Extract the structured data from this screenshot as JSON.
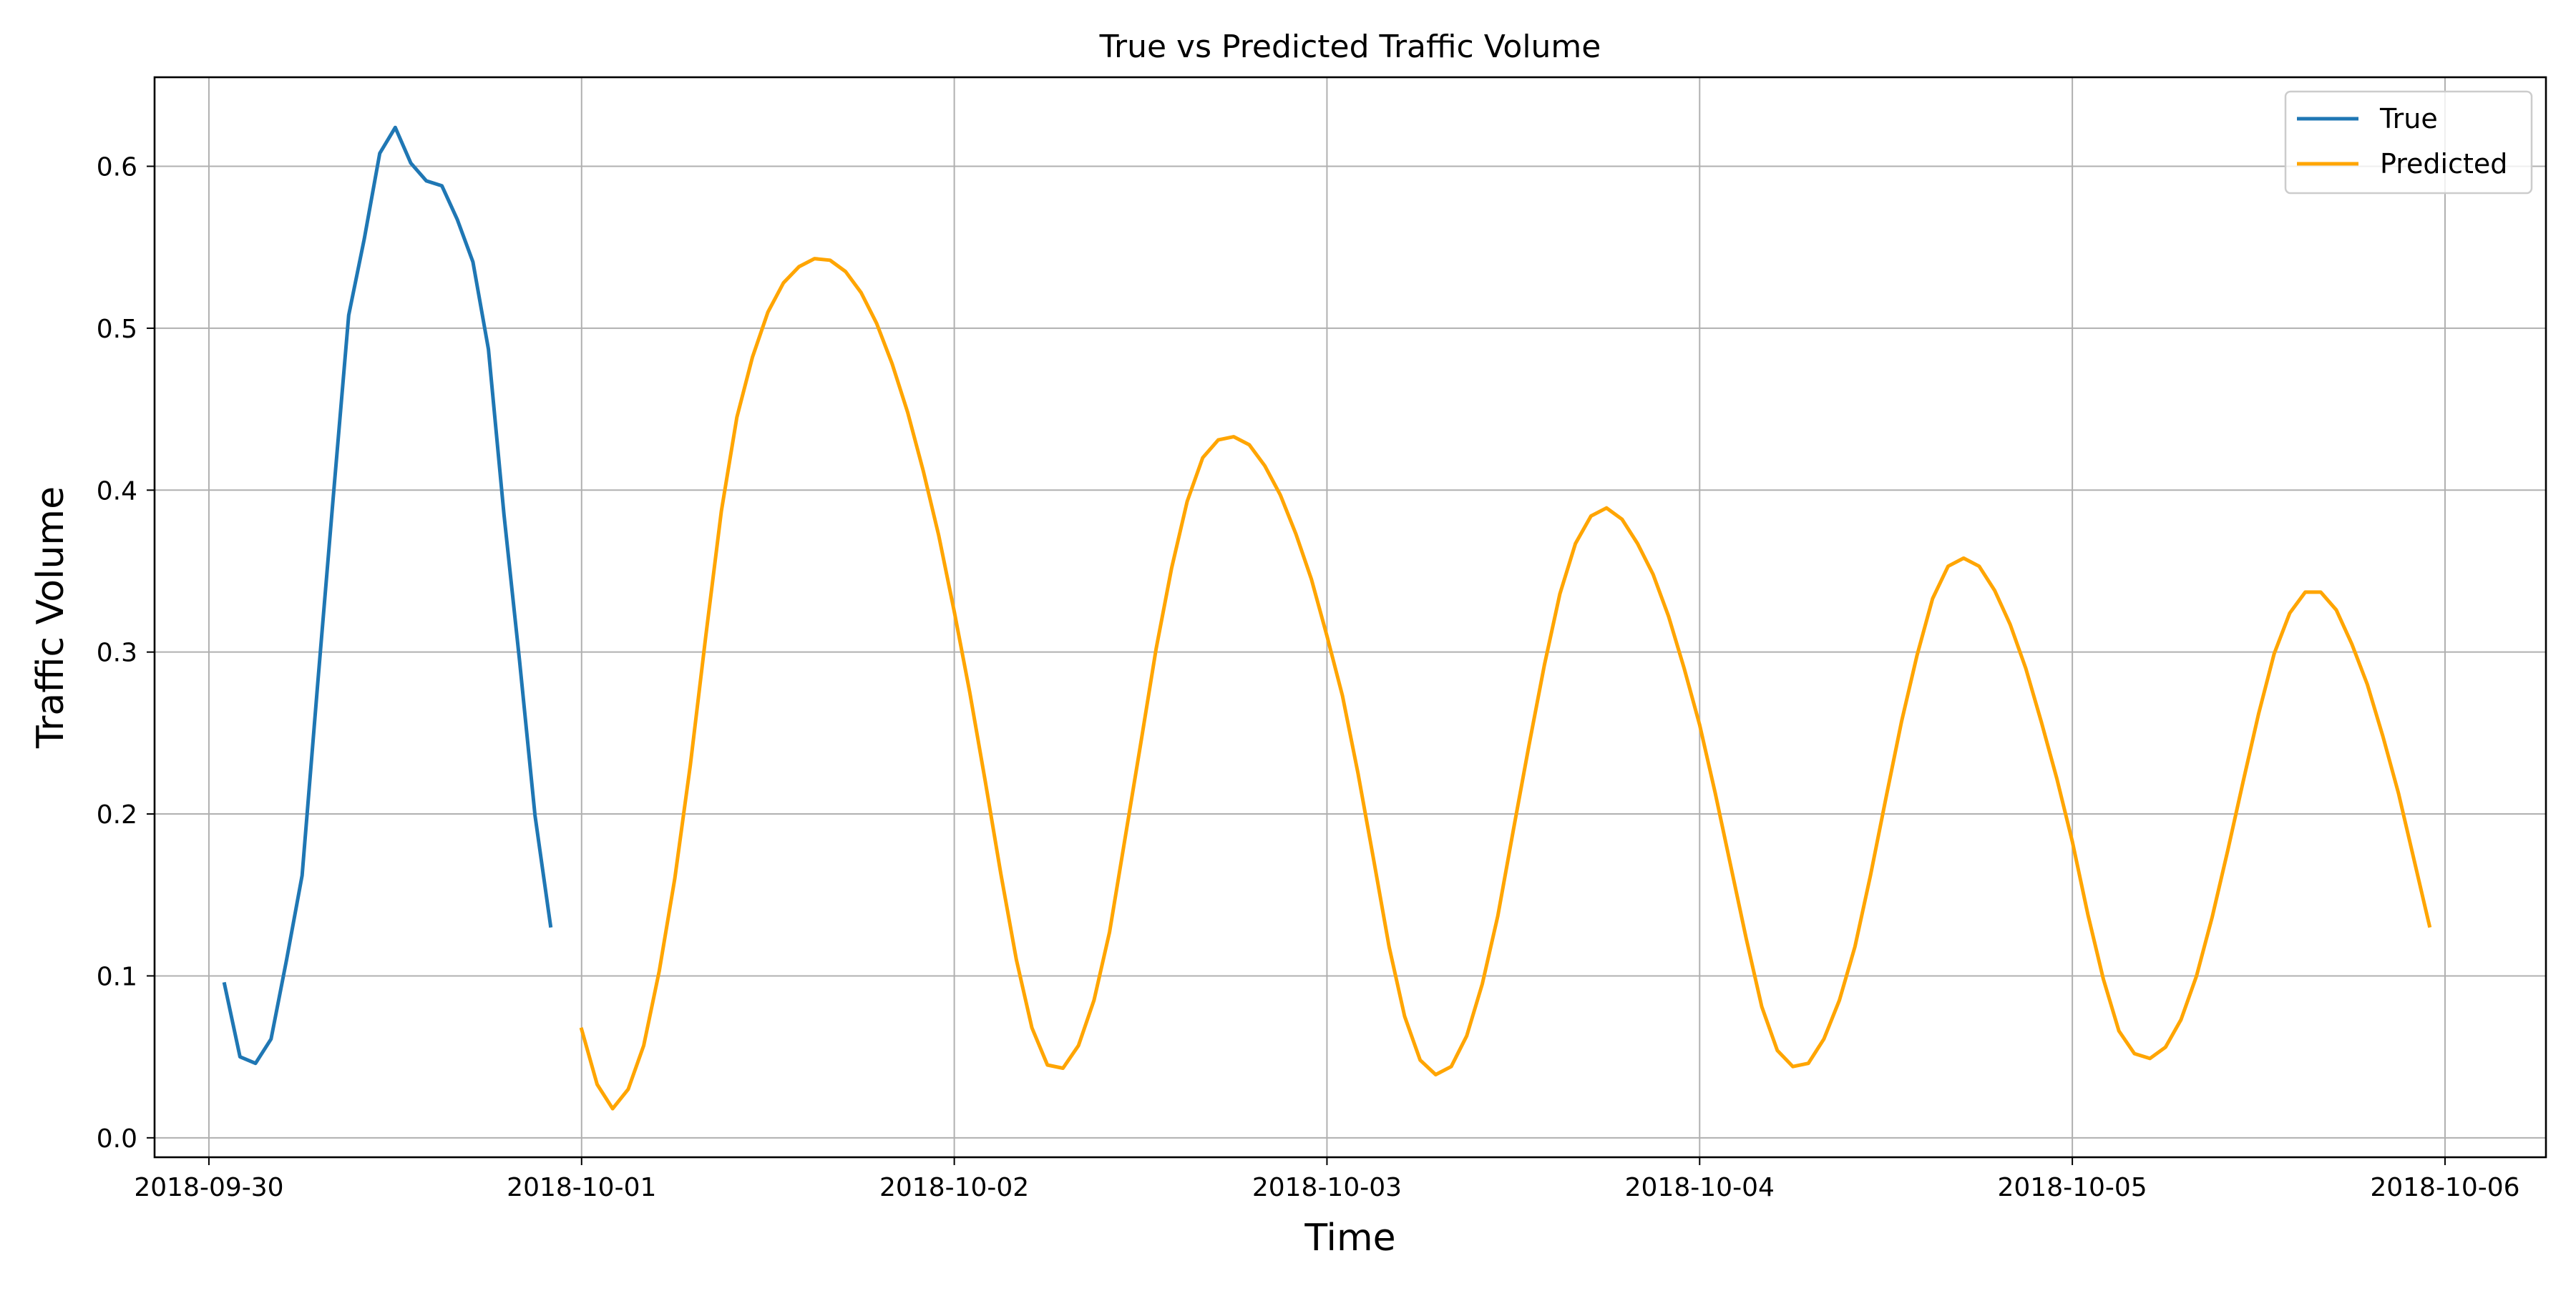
{
  "chart_data": {
    "type": "line",
    "title": "True vs Predicted Traffic Volume",
    "xlabel": "Time",
    "ylabel": "Traffic Volume",
    "x_tick_labels": [
      "2018-09-30",
      "2018-10-01",
      "2018-10-02",
      "2018-10-03",
      "2018-10-04",
      "2018-10-05",
      "2018-10-06"
    ],
    "y_tick_labels": [
      "0.0",
      "0.1",
      "0.2",
      "0.3",
      "0.4",
      "0.5",
      "0.6"
    ],
    "xlim": [
      "2018-09-29 20:30",
      "2018-10-06 06:30"
    ],
    "ylim": [
      -0.012,
      0.655
    ],
    "grid": true,
    "legend_position": "upper right",
    "series": [
      {
        "name": "True",
        "color": "#1f77b4",
        "x": [
          "2018-09-30 01:00",
          "2018-09-30 02:00",
          "2018-09-30 03:00",
          "2018-09-30 04:00",
          "2018-09-30 05:00",
          "2018-09-30 06:00",
          "2018-09-30 07:00",
          "2018-09-30 08:00",
          "2018-09-30 09:00",
          "2018-09-30 10:00",
          "2018-09-30 11:00",
          "2018-09-30 12:00",
          "2018-09-30 13:00",
          "2018-09-30 14:00",
          "2018-09-30 15:00",
          "2018-09-30 16:00",
          "2018-09-30 17:00",
          "2018-09-30 18:00",
          "2018-09-30 19:00",
          "2018-09-30 20:00",
          "2018-09-30 21:00",
          "2018-09-30 22:00",
          "2018-09-30 23:00"
        ],
        "values": [
          0.095,
          0.05,
          0.046,
          0.061,
          0.11,
          0.162,
          0.28,
          0.395,
          0.508,
          0.555,
          0.608,
          0.624,
          0.602,
          0.591,
          0.588,
          0.567,
          0.541,
          0.487,
          0.385,
          0.295,
          0.199,
          0.131,
          null
        ]
      },
      {
        "name": "Predicted",
        "color": "#ffa500",
        "x": [
          "2018-10-01 00:00",
          "2018-10-01 01:00",
          "2018-10-01 02:00",
          "2018-10-01 03:00",
          "2018-10-01 04:00",
          "2018-10-01 05:00",
          "2018-10-01 06:00",
          "2018-10-01 07:00",
          "2018-10-01 08:00",
          "2018-10-01 09:00",
          "2018-10-01 10:00",
          "2018-10-01 11:00",
          "2018-10-01 12:00",
          "2018-10-01 13:00",
          "2018-10-01 14:00",
          "2018-10-01 15:00",
          "2018-10-01 16:00",
          "2018-10-01 17:00",
          "2018-10-01 18:00",
          "2018-10-01 19:00",
          "2018-10-01 20:00",
          "2018-10-01 21:00",
          "2018-10-01 22:00",
          "2018-10-01 23:00",
          "2018-10-02 00:00",
          "2018-10-02 01:00",
          "2018-10-02 02:00",
          "2018-10-02 03:00",
          "2018-10-02 04:00",
          "2018-10-02 05:00",
          "2018-10-02 06:00",
          "2018-10-02 07:00",
          "2018-10-02 08:00",
          "2018-10-02 09:00",
          "2018-10-02 10:00",
          "2018-10-02 11:00",
          "2018-10-02 12:00",
          "2018-10-02 13:00",
          "2018-10-02 14:00",
          "2018-10-02 15:00",
          "2018-10-02 16:00",
          "2018-10-02 17:00",
          "2018-10-02 18:00",
          "2018-10-02 19:00",
          "2018-10-02 20:00",
          "2018-10-02 21:00",
          "2018-10-02 22:00",
          "2018-10-02 23:00",
          "2018-10-03 00:00",
          "2018-10-03 01:00",
          "2018-10-03 02:00",
          "2018-10-03 03:00",
          "2018-10-03 04:00",
          "2018-10-03 05:00",
          "2018-10-03 06:00",
          "2018-10-03 07:00",
          "2018-10-03 08:00",
          "2018-10-03 09:00",
          "2018-10-03 10:00",
          "2018-10-03 11:00",
          "2018-10-03 12:00",
          "2018-10-03 13:00",
          "2018-10-03 14:00",
          "2018-10-03 15:00",
          "2018-10-03 16:00",
          "2018-10-03 17:00",
          "2018-10-03 18:00",
          "2018-10-03 19:00",
          "2018-10-03 20:00",
          "2018-10-03 21:00",
          "2018-10-03 22:00",
          "2018-10-03 23:00",
          "2018-10-04 00:00",
          "2018-10-04 01:00",
          "2018-10-04 02:00",
          "2018-10-04 03:00",
          "2018-10-04 04:00",
          "2018-10-04 05:00",
          "2018-10-04 06:00",
          "2018-10-04 07:00",
          "2018-10-04 08:00",
          "2018-10-04 09:00",
          "2018-10-04 10:00",
          "2018-10-04 11:00",
          "2018-10-04 12:00",
          "2018-10-04 13:00",
          "2018-10-04 14:00",
          "2018-10-04 15:00",
          "2018-10-04 16:00",
          "2018-10-04 17:00",
          "2018-10-04 18:00",
          "2018-10-04 19:00",
          "2018-10-04 20:00",
          "2018-10-04 21:00",
          "2018-10-04 22:00",
          "2018-10-04 23:00",
          "2018-10-05 00:00",
          "2018-10-05 01:00",
          "2018-10-05 02:00",
          "2018-10-05 03:00",
          "2018-10-05 04:00",
          "2018-10-05 05:00",
          "2018-10-05 06:00",
          "2018-10-05 07:00",
          "2018-10-05 08:00",
          "2018-10-05 09:00",
          "2018-10-05 10:00",
          "2018-10-05 11:00",
          "2018-10-05 12:00",
          "2018-10-05 13:00",
          "2018-10-05 14:00",
          "2018-10-05 15:00",
          "2018-10-05 16:00",
          "2018-10-05 17:00",
          "2018-10-05 18:00",
          "2018-10-05 19:00",
          "2018-10-05 20:00",
          "2018-10-05 21:00",
          "2018-10-05 22:00",
          "2018-10-05 23:00"
        ],
        "values": [
          0.067,
          0.033,
          0.018,
          0.03,
          0.057,
          0.103,
          0.16,
          0.23,
          0.31,
          0.387,
          0.445,
          0.482,
          0.51,
          0.528,
          0.538,
          0.543,
          0.542,
          0.535,
          0.522,
          0.503,
          0.478,
          0.448,
          0.412,
          0.372,
          0.325,
          0.275,
          0.22,
          0.163,
          0.11,
          0.068,
          0.045,
          0.043,
          0.057,
          0.085,
          0.127,
          0.185,
          0.243,
          0.302,
          0.352,
          0.393,
          0.42,
          0.431,
          0.433,
          0.428,
          0.415,
          0.397,
          0.373,
          0.345,
          0.31,
          0.273,
          0.225,
          0.172,
          0.118,
          0.075,
          0.048,
          0.039,
          0.044,
          0.063,
          0.095,
          0.137,
          0.19,
          0.242,
          0.292,
          0.336,
          0.367,
          0.384,
          0.389,
          0.382,
          0.367,
          0.348,
          0.322,
          0.29,
          0.255,
          0.213,
          0.168,
          0.123,
          0.081,
          0.054,
          0.044,
          0.046,
          0.061,
          0.085,
          0.118,
          0.162,
          0.21,
          0.257,
          0.298,
          0.333,
          0.353,
          0.358,
          0.353,
          0.338,
          0.317,
          0.29,
          0.257,
          0.222,
          0.183,
          0.138,
          0.098,
          0.066,
          0.052,
          0.049,
          0.056,
          0.073,
          0.1,
          0.136,
          0.177,
          0.22,
          0.262,
          0.299,
          0.324,
          0.337,
          0.337,
          0.326,
          0.305,
          0.28,
          0.248,
          0.213,
          0.172,
          0.131
        ]
      }
    ]
  }
}
